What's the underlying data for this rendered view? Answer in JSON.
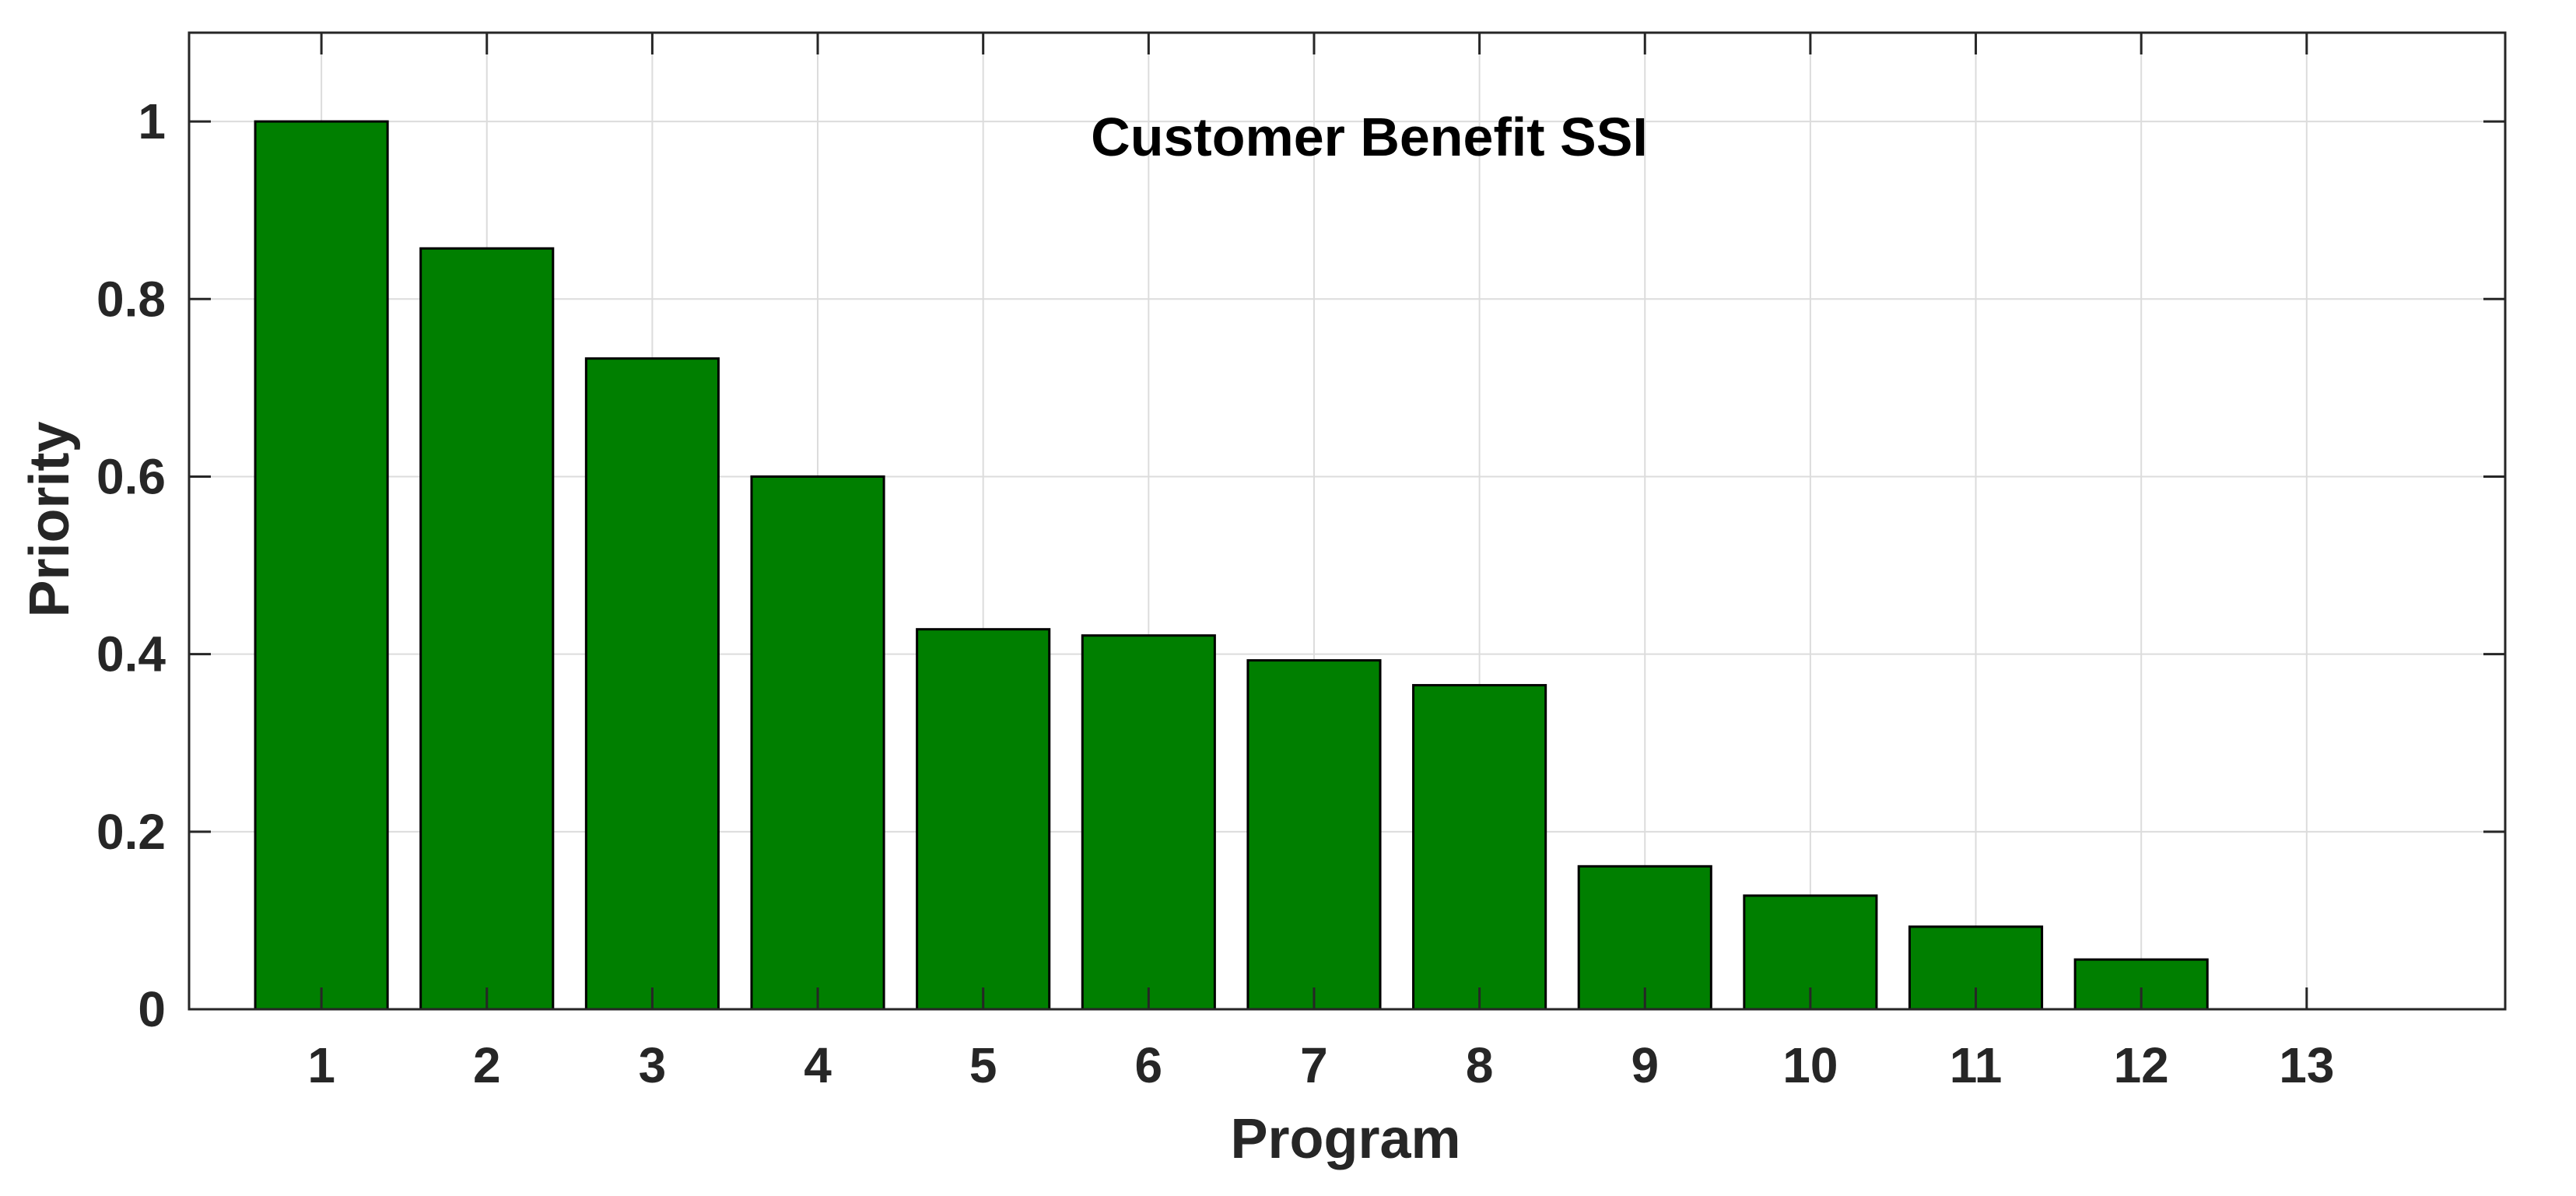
{
  "chart_data": {
    "type": "bar",
    "title": "Customer Benefit SSI",
    "xlabel": "Program",
    "ylabel": "Priority",
    "categories": [
      "1",
      "2",
      "3",
      "4",
      "5",
      "6",
      "7",
      "8",
      "9",
      "10",
      "11",
      "12",
      "13"
    ],
    "values": [
      1.0,
      0.857,
      0.733,
      0.6,
      0.428,
      0.421,
      0.393,
      0.365,
      0.161,
      0.128,
      0.093,
      0.056,
      0.0
    ],
    "x_ticks": [
      "1",
      "2",
      "3",
      "4",
      "5",
      "6",
      "7",
      "8",
      "9",
      "10",
      "11",
      "12",
      "13"
    ],
    "y_ticks": [
      "0",
      "0.2",
      "0.4",
      "0.6",
      "0.8",
      "1"
    ],
    "y_tick_values": [
      0,
      0.2,
      0.4,
      0.6,
      0.8,
      1
    ],
    "xlim": [
      0.2,
      14.2
    ],
    "ylim": [
      0,
      1.1
    ],
    "grid": true,
    "colors": {
      "bar_fill": "#007f00",
      "bar_edge": "#000000",
      "grid": "#dcdcdc",
      "axes": "#262626",
      "background": "#ffffff"
    }
  }
}
